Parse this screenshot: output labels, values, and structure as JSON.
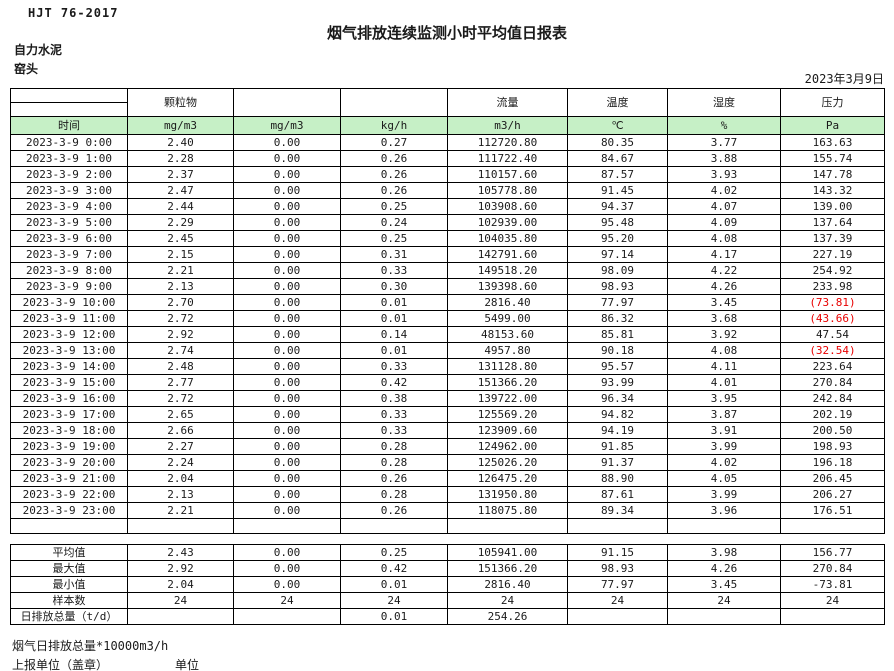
{
  "colors": {
    "header_green": "#c6f0c6",
    "negative_red": "#e80000",
    "border": "#000000"
  },
  "header": {
    "doc_code": "HJT  76-2017",
    "title": "烟气排放连续监测小时平均值日报表",
    "company": "自力水泥",
    "location": "窑头",
    "date": "2023年3月9日"
  },
  "table": {
    "group_headers": [
      "",
      "颗粒物",
      "",
      "",
      "流量",
      "温度",
      "湿度",
      "压力"
    ],
    "unit_headers": [
      "时间",
      "mg/m3",
      "mg/m3",
      "kg/h",
      "m3/h",
      "℃",
      "%",
      "Pa"
    ],
    "rows": [
      [
        "2023-3-9 0:00",
        "2.40",
        "0.00",
        "0.27",
        "112720.80",
        "80.35",
        "3.77",
        "163.63"
      ],
      [
        "2023-3-9 1:00",
        "2.28",
        "0.00",
        "0.26",
        "111722.40",
        "84.67",
        "3.88",
        "155.74"
      ],
      [
        "2023-3-9 2:00",
        "2.37",
        "0.00",
        "0.26",
        "110157.60",
        "87.57",
        "3.93",
        "147.78"
      ],
      [
        "2023-3-9 3:00",
        "2.47",
        "0.00",
        "0.26",
        "105778.80",
        "91.45",
        "4.02",
        "143.32"
      ],
      [
        "2023-3-9 4:00",
        "2.44",
        "0.00",
        "0.25",
        "103908.60",
        "94.37",
        "4.07",
        "139.00"
      ],
      [
        "2023-3-9 5:00",
        "2.29",
        "0.00",
        "0.24",
        "102939.00",
        "95.48",
        "4.09",
        "137.64"
      ],
      [
        "2023-3-9 6:00",
        "2.45",
        "0.00",
        "0.25",
        "104035.80",
        "95.20",
        "4.08",
        "137.39"
      ],
      [
        "2023-3-9 7:00",
        "2.15",
        "0.00",
        "0.31",
        "142791.60",
        "97.14",
        "4.17",
        "227.19"
      ],
      [
        "2023-3-9 8:00",
        "2.21",
        "0.00",
        "0.33",
        "149518.20",
        "98.09",
        "4.22",
        "254.92"
      ],
      [
        "2023-3-9 9:00",
        "2.13",
        "0.00",
        "0.30",
        "139398.60",
        "98.93",
        "4.26",
        "233.98"
      ],
      [
        "2023-3-9 10:00",
        "2.70",
        "0.00",
        "0.01",
        "2816.40",
        "77.97",
        "3.45",
        "(73.81)"
      ],
      [
        "2023-3-9 11:00",
        "2.72",
        "0.00",
        "0.01",
        "5499.00",
        "86.32",
        "3.68",
        "(43.66)"
      ],
      [
        "2023-3-9 12:00",
        "2.92",
        "0.00",
        "0.14",
        "48153.60",
        "85.81",
        "3.92",
        "47.54"
      ],
      [
        "2023-3-9 13:00",
        "2.74",
        "0.00",
        "0.01",
        "4957.80",
        "90.18",
        "4.08",
        "(32.54)"
      ],
      [
        "2023-3-9 14:00",
        "2.48",
        "0.00",
        "0.33",
        "131128.80",
        "95.57",
        "4.11",
        "223.64"
      ],
      [
        "2023-3-9 15:00",
        "2.77",
        "0.00",
        "0.42",
        "151366.20",
        "93.99",
        "4.01",
        "270.84"
      ],
      [
        "2023-3-9 16:00",
        "2.72",
        "0.00",
        "0.38",
        "139722.00",
        "96.34",
        "3.95",
        "242.84"
      ],
      [
        "2023-3-9 17:00",
        "2.65",
        "0.00",
        "0.33",
        "125569.20",
        "94.82",
        "3.87",
        "202.19"
      ],
      [
        "2023-3-9 18:00",
        "2.66",
        "0.00",
        "0.33",
        "123909.60",
        "94.19",
        "3.91",
        "200.50"
      ],
      [
        "2023-3-9 19:00",
        "2.27",
        "0.00",
        "0.28",
        "124962.00",
        "91.85",
        "3.99",
        "198.93"
      ],
      [
        "2023-3-9 20:00",
        "2.24",
        "0.00",
        "0.28",
        "125026.20",
        "91.37",
        "4.02",
        "196.18"
      ],
      [
        "2023-3-9 21:00",
        "2.04",
        "0.00",
        "0.26",
        "126475.20",
        "88.90",
        "4.05",
        "206.45"
      ],
      [
        "2023-3-9 22:00",
        "2.13",
        "0.00",
        "0.28",
        "131950.80",
        "87.61",
        "3.99",
        "206.27"
      ],
      [
        "2023-3-9 23:00",
        "2.21",
        "0.00",
        "0.26",
        "118075.80",
        "89.34",
        "3.96",
        "176.51"
      ]
    ],
    "summary": [
      {
        "label": "平均值",
        "values": [
          "2.43",
          "0.00",
          "0.25",
          "105941.00",
          "91.15",
          "3.98",
          "156.77"
        ]
      },
      {
        "label": "最大值",
        "values": [
          "2.92",
          "0.00",
          "0.42",
          "151366.20",
          "98.93",
          "4.26",
          "270.84"
        ]
      },
      {
        "label": "最小值",
        "values": [
          "2.04",
          "0.00",
          "0.01",
          "2816.40",
          "77.97",
          "3.45",
          "-73.81"
        ]
      },
      {
        "label": "样本数",
        "values": [
          "24",
          "24",
          "24",
          "24",
          "24",
          "24",
          "24"
        ]
      },
      {
        "label": "日排放总量（t/d）",
        "values": [
          "",
          "",
          "0.01",
          "254.26",
          "",
          "",
          ""
        ]
      }
    ]
  },
  "footer": {
    "note": "烟气日排放总量*10000m3/h",
    "report_unit": "上报单位（盖章）",
    "unit_label": "单位"
  }
}
